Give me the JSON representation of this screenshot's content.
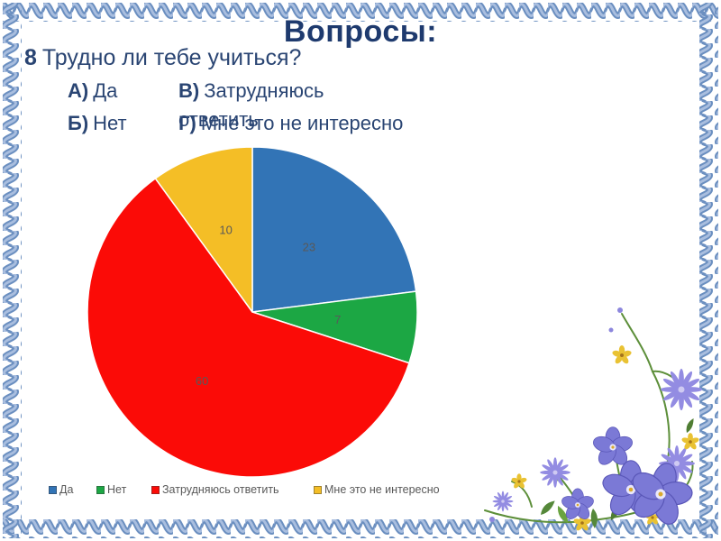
{
  "slide_title": "Вопросы:",
  "question": {
    "number": "8",
    "text": "Трудно ли тебе учиться?"
  },
  "options": {
    "a": {
      "letter": "А)",
      "text": "Да"
    },
    "b": {
      "letter": "Б)",
      "text": "Нет"
    },
    "v": {
      "letter": "В)",
      "text": "Затрудняюсь",
      "wrap": "ответить"
    },
    "g": {
      "letter": "Г)",
      "text": "Мне это не интересно"
    }
  },
  "chart_data": {
    "type": "pie",
    "title": "",
    "categories": [
      "Да",
      "Нет",
      "Затрудняюсь ответить",
      "Мне это не интересно"
    ],
    "values": [
      23,
      7,
      60,
      10
    ],
    "colors": [
      "#3274b6",
      "#1ca744",
      "#fb0b07",
      "#f4be26"
    ],
    "start_angle_deg": 0,
    "direction": "clockwise",
    "data_labels_shown": true,
    "label_color": "#595959",
    "legend_position": "bottom",
    "legend_text_color": "#595959"
  },
  "theme": {
    "title_color": "#1e3a6e",
    "body_text_color": "#2a4573",
    "border_ribbon_color": "#7d9cc9",
    "border_ribbon_dark": "#6b8fc0",
    "border_ribbon_light": "#a9bedf",
    "slide_background": "#ffffff"
  },
  "decor": {
    "corner_flowers": "floral-corner-decoration"
  }
}
